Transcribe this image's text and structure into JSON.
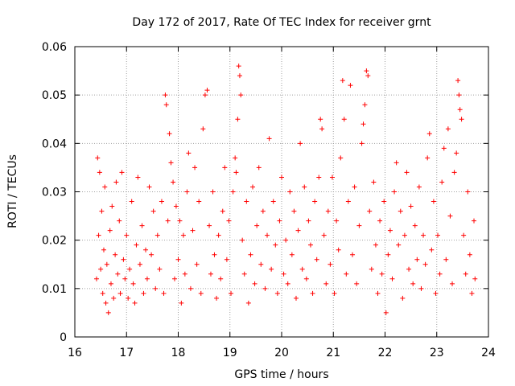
{
  "chart_data": {
    "type": "scatter",
    "title": "Day 172 of 2017, Rate Of TEC Index for receiver grnt",
    "xlabel": "GPS time / hours",
    "ylabel": "ROTI / TECUs",
    "xlim": [
      16,
      24
    ],
    "ylim": [
      0,
      0.06
    ],
    "x_ticks": [
      16,
      17,
      18,
      19,
      20,
      21,
      22,
      23,
      24
    ],
    "y_ticks": [
      0,
      0.01,
      0.02,
      0.03,
      0.04,
      0.05,
      0.06
    ],
    "x_tick_labels": [
      "16",
      "17",
      "18",
      "19",
      "20",
      "21",
      "22",
      "23",
      "24"
    ],
    "y_tick_labels": [
      "0",
      "0.01",
      "0.02",
      "0.03",
      "0.04",
      "0.05",
      "0.06"
    ],
    "grid": true,
    "marker": "+",
    "series_color": "#ff0000",
    "series": [
      {
        "name": "ROTI",
        "points": [
          [
            16.42,
            0.012
          ],
          [
            16.44,
            0.037
          ],
          [
            16.46,
            0.021
          ],
          [
            16.48,
            0.034
          ],
          [
            16.5,
            0.014
          ],
          [
            16.52,
            0.026
          ],
          [
            16.54,
            0.009
          ],
          [
            16.56,
            0.018
          ],
          [
            16.58,
            0.031
          ],
          [
            16.6,
            0.007
          ],
          [
            16.62,
            0.015
          ],
          [
            16.65,
            0.005
          ],
          [
            16.68,
            0.022
          ],
          [
            16.7,
            0.011
          ],
          [
            16.72,
            0.027
          ],
          [
            16.75,
            0.008
          ],
          [
            16.78,
            0.017
          ],
          [
            16.8,
            0.032
          ],
          [
            16.83,
            0.013
          ],
          [
            16.86,
            0.024
          ],
          [
            16.88,
            0.009
          ],
          [
            16.91,
            0.034
          ],
          [
            16.94,
            0.016
          ],
          [
            16.97,
            0.012
          ],
          [
            17.0,
            0.021
          ],
          [
            17.03,
            0.008
          ],
          [
            17.06,
            0.014
          ],
          [
            17.1,
            0.028
          ],
          [
            17.13,
            0.011
          ],
          [
            17.16,
            0.007
          ],
          [
            17.19,
            0.019
          ],
          [
            17.22,
            0.033
          ],
          [
            17.26,
            0.015
          ],
          [
            17.3,
            0.023
          ],
          [
            17.33,
            0.009
          ],
          [
            17.37,
            0.018
          ],
          [
            17.4,
            0.012
          ],
          [
            17.44,
            0.031
          ],
          [
            17.48,
            0.017
          ],
          [
            17.52,
            0.026
          ],
          [
            17.56,
            0.01
          ],
          [
            17.6,
            0.021
          ],
          [
            17.64,
            0.014
          ],
          [
            17.68,
            0.028
          ],
          [
            17.72,
            0.009
          ],
          [
            17.75,
            0.05
          ],
          [
            17.77,
            0.048
          ],
          [
            17.8,
            0.024
          ],
          [
            17.83,
            0.042
          ],
          [
            17.86,
            0.036
          ],
          [
            17.9,
            0.032
          ],
          [
            17.93,
            0.012
          ],
          [
            17.96,
            0.027
          ],
          [
            18.0,
            0.016
          ],
          [
            18.03,
            0.024
          ],
          [
            18.06,
            0.007
          ],
          [
            18.1,
            0.021
          ],
          [
            18.13,
            0.013
          ],
          [
            18.17,
            0.03
          ],
          [
            18.2,
            0.038
          ],
          [
            18.24,
            0.01
          ],
          [
            18.28,
            0.022
          ],
          [
            18.32,
            0.035
          ],
          [
            18.36,
            0.015
          ],
          [
            18.4,
            0.028
          ],
          [
            18.44,
            0.009
          ],
          [
            18.48,
            0.043
          ],
          [
            18.52,
            0.05
          ],
          [
            18.56,
            0.051
          ],
          [
            18.6,
            0.023
          ],
          [
            18.63,
            0.013
          ],
          [
            18.67,
            0.03
          ],
          [
            18.7,
            0.017
          ],
          [
            18.74,
            0.008
          ],
          [
            18.78,
            0.021
          ],
          [
            18.82,
            0.012
          ],
          [
            18.86,
            0.026
          ],
          [
            18.9,
            0.035
          ],
          [
            18.94,
            0.016
          ],
          [
            18.98,
            0.024
          ],
          [
            19.02,
            0.009
          ],
          [
            19.06,
            0.03
          ],
          [
            19.1,
            0.037
          ],
          [
            19.12,
            0.034
          ],
          [
            19.15,
            0.045
          ],
          [
            19.17,
            0.056
          ],
          [
            19.19,
            0.054
          ],
          [
            19.21,
            0.05
          ],
          [
            19.24,
            0.02
          ],
          [
            19.28,
            0.013
          ],
          [
            19.32,
            0.028
          ],
          [
            19.36,
            0.007
          ],
          [
            19.4,
            0.017
          ],
          [
            19.44,
            0.031
          ],
          [
            19.48,
            0.011
          ],
          [
            19.52,
            0.023
          ],
          [
            19.56,
            0.035
          ],
          [
            19.6,
            0.015
          ],
          [
            19.64,
            0.026
          ],
          [
            19.68,
            0.01
          ],
          [
            19.72,
            0.021
          ],
          [
            19.76,
            0.041
          ],
          [
            19.8,
            0.014
          ],
          [
            19.84,
            0.028
          ],
          [
            19.88,
            0.019
          ],
          [
            19.92,
            0.009
          ],
          [
            19.96,
            0.024
          ],
          [
            20.0,
            0.033
          ],
          [
            20.04,
            0.013
          ],
          [
            20.08,
            0.02
          ],
          [
            20.12,
            0.011
          ],
          [
            20.16,
            0.03
          ],
          [
            20.2,
            0.017
          ],
          [
            20.24,
            0.026
          ],
          [
            20.28,
            0.008
          ],
          [
            20.32,
            0.022
          ],
          [
            20.36,
            0.04
          ],
          [
            20.4,
            0.014
          ],
          [
            20.44,
            0.031
          ],
          [
            20.48,
            0.012
          ],
          [
            20.52,
            0.024
          ],
          [
            20.56,
            0.019
          ],
          [
            20.6,
            0.009
          ],
          [
            20.64,
            0.028
          ],
          [
            20.68,
            0.016
          ],
          [
            20.72,
            0.033
          ],
          [
            20.75,
            0.045
          ],
          [
            20.78,
            0.043
          ],
          [
            20.82,
            0.021
          ],
          [
            20.86,
            0.011
          ],
          [
            20.9,
            0.026
          ],
          [
            20.94,
            0.015
          ],
          [
            20.98,
            0.033
          ],
          [
            21.02,
            0.009
          ],
          [
            21.06,
            0.024
          ],
          [
            21.1,
            0.018
          ],
          [
            21.14,
            0.037
          ],
          [
            21.18,
            0.053
          ],
          [
            21.21,
            0.045
          ],
          [
            21.25,
            0.013
          ],
          [
            21.29,
            0.028
          ],
          [
            21.33,
            0.052
          ],
          [
            21.37,
            0.017
          ],
          [
            21.41,
            0.031
          ],
          [
            21.45,
            0.011
          ],
          [
            21.5,
            0.023
          ],
          [
            21.55,
            0.04
          ],
          [
            21.58,
            0.044
          ],
          [
            21.61,
            0.048
          ],
          [
            21.64,
            0.055
          ],
          [
            21.67,
            0.054
          ],
          [
            21.7,
            0.026
          ],
          [
            21.74,
            0.014
          ],
          [
            21.78,
            0.032
          ],
          [
            21.82,
            0.019
          ],
          [
            21.86,
            0.009
          ],
          [
            21.9,
            0.024
          ],
          [
            21.94,
            0.013
          ],
          [
            21.98,
            0.028
          ],
          [
            22.02,
            0.005
          ],
          [
            22.06,
            0.017
          ],
          [
            22.1,
            0.022
          ],
          [
            22.14,
            0.012
          ],
          [
            22.18,
            0.03
          ],
          [
            22.22,
            0.036
          ],
          [
            22.26,
            0.019
          ],
          [
            22.3,
            0.026
          ],
          [
            22.34,
            0.008
          ],
          [
            22.38,
            0.021
          ],
          [
            22.42,
            0.034
          ],
          [
            22.46,
            0.014
          ],
          [
            22.5,
            0.027
          ],
          [
            22.54,
            0.011
          ],
          [
            22.58,
            0.023
          ],
          [
            22.62,
            0.016
          ],
          [
            22.66,
            0.031
          ],
          [
            22.7,
            0.01
          ],
          [
            22.74,
            0.021
          ],
          [
            22.78,
            0.015
          ],
          [
            22.82,
            0.037
          ],
          [
            22.86,
            0.042
          ],
          [
            22.9,
            0.018
          ],
          [
            22.94,
            0.028
          ],
          [
            22.98,
            0.009
          ],
          [
            23.02,
            0.021
          ],
          [
            23.06,
            0.013
          ],
          [
            23.1,
            0.032
          ],
          [
            23.14,
            0.039
          ],
          [
            23.18,
            0.016
          ],
          [
            23.22,
            0.043
          ],
          [
            23.26,
            0.025
          ],
          [
            23.3,
            0.011
          ],
          [
            23.34,
            0.034
          ],
          [
            23.38,
            0.038
          ],
          [
            23.41,
            0.053
          ],
          [
            23.43,
            0.05
          ],
          [
            23.45,
            0.047
          ],
          [
            23.48,
            0.045
          ],
          [
            23.52,
            0.021
          ],
          [
            23.56,
            0.013
          ],
          [
            23.6,
            0.03
          ],
          [
            23.64,
            0.017
          ],
          [
            23.68,
            0.009
          ],
          [
            23.72,
            0.024
          ],
          [
            23.74,
            0.012
          ]
        ]
      }
    ]
  }
}
